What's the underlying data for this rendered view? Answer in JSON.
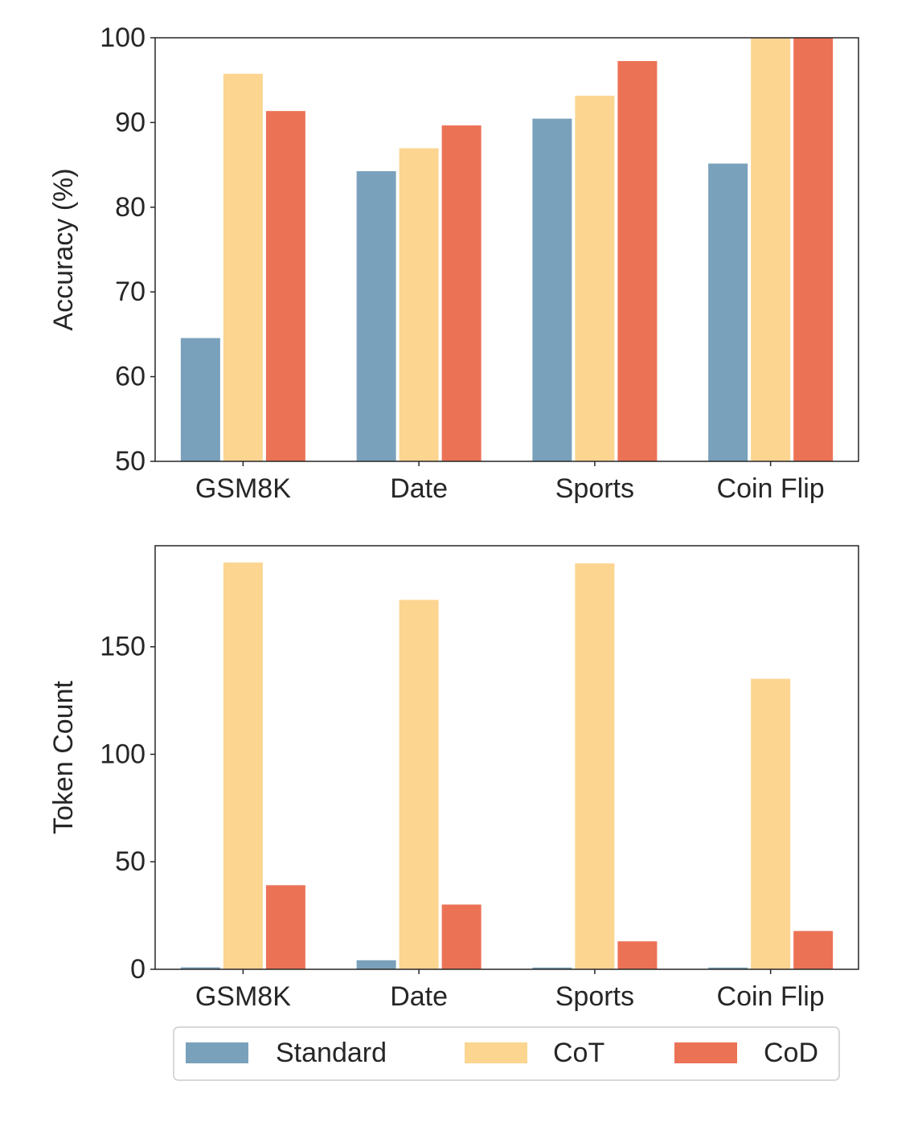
{
  "chart_data": [
    {
      "type": "bar",
      "title": "",
      "xlabel": "",
      "ylabel": "Accuracy (%)",
      "ylim": [
        50,
        100
      ],
      "yticks": [
        50,
        60,
        70,
        80,
        90,
        100
      ],
      "categories": [
        "GSM8K",
        "Date",
        "Sports",
        "Coin Flip"
      ],
      "series": [
        {
          "name": "Standard",
          "color": "#7aa1bb",
          "values": [
            64.6,
            84.3,
            90.5,
            85.2
          ]
        },
        {
          "name": "CoT",
          "color": "#fcd591",
          "values": [
            95.8,
            87.0,
            93.2,
            100.0
          ]
        },
        {
          "name": "CoD",
          "color": "#ec7256",
          "values": [
            91.4,
            89.7,
            97.3,
            100.0
          ]
        }
      ],
      "grid": false
    },
    {
      "type": "bar",
      "title": "",
      "xlabel": "",
      "ylabel": "Token Count",
      "ylim": [
        0,
        197
      ],
      "yticks": [
        0,
        50,
        100,
        150
      ],
      "categories": [
        "GSM8K",
        "Date",
        "Sports",
        "Coin Flip"
      ],
      "series": [
        {
          "name": "Standard",
          "color": "#7aa1bb",
          "values": [
            1.1,
            4.4,
            1.0,
            1.0
          ]
        },
        {
          "name": "CoT",
          "color": "#fcd591",
          "values": [
            189.4,
            172.0,
            189.0,
            135.3
          ]
        },
        {
          "name": "CoD",
          "color": "#ec7256",
          "values": [
            39.3,
            30.3,
            13.2,
            18.0
          ]
        }
      ],
      "grid": false
    }
  ],
  "legend": {
    "placement": "bottom-center",
    "entries": [
      {
        "label": "Standard",
        "color": "#7aa1bb"
      },
      {
        "label": "CoT",
        "color": "#fcd591"
      },
      {
        "label": "CoD",
        "color": "#ec7256"
      }
    ]
  }
}
